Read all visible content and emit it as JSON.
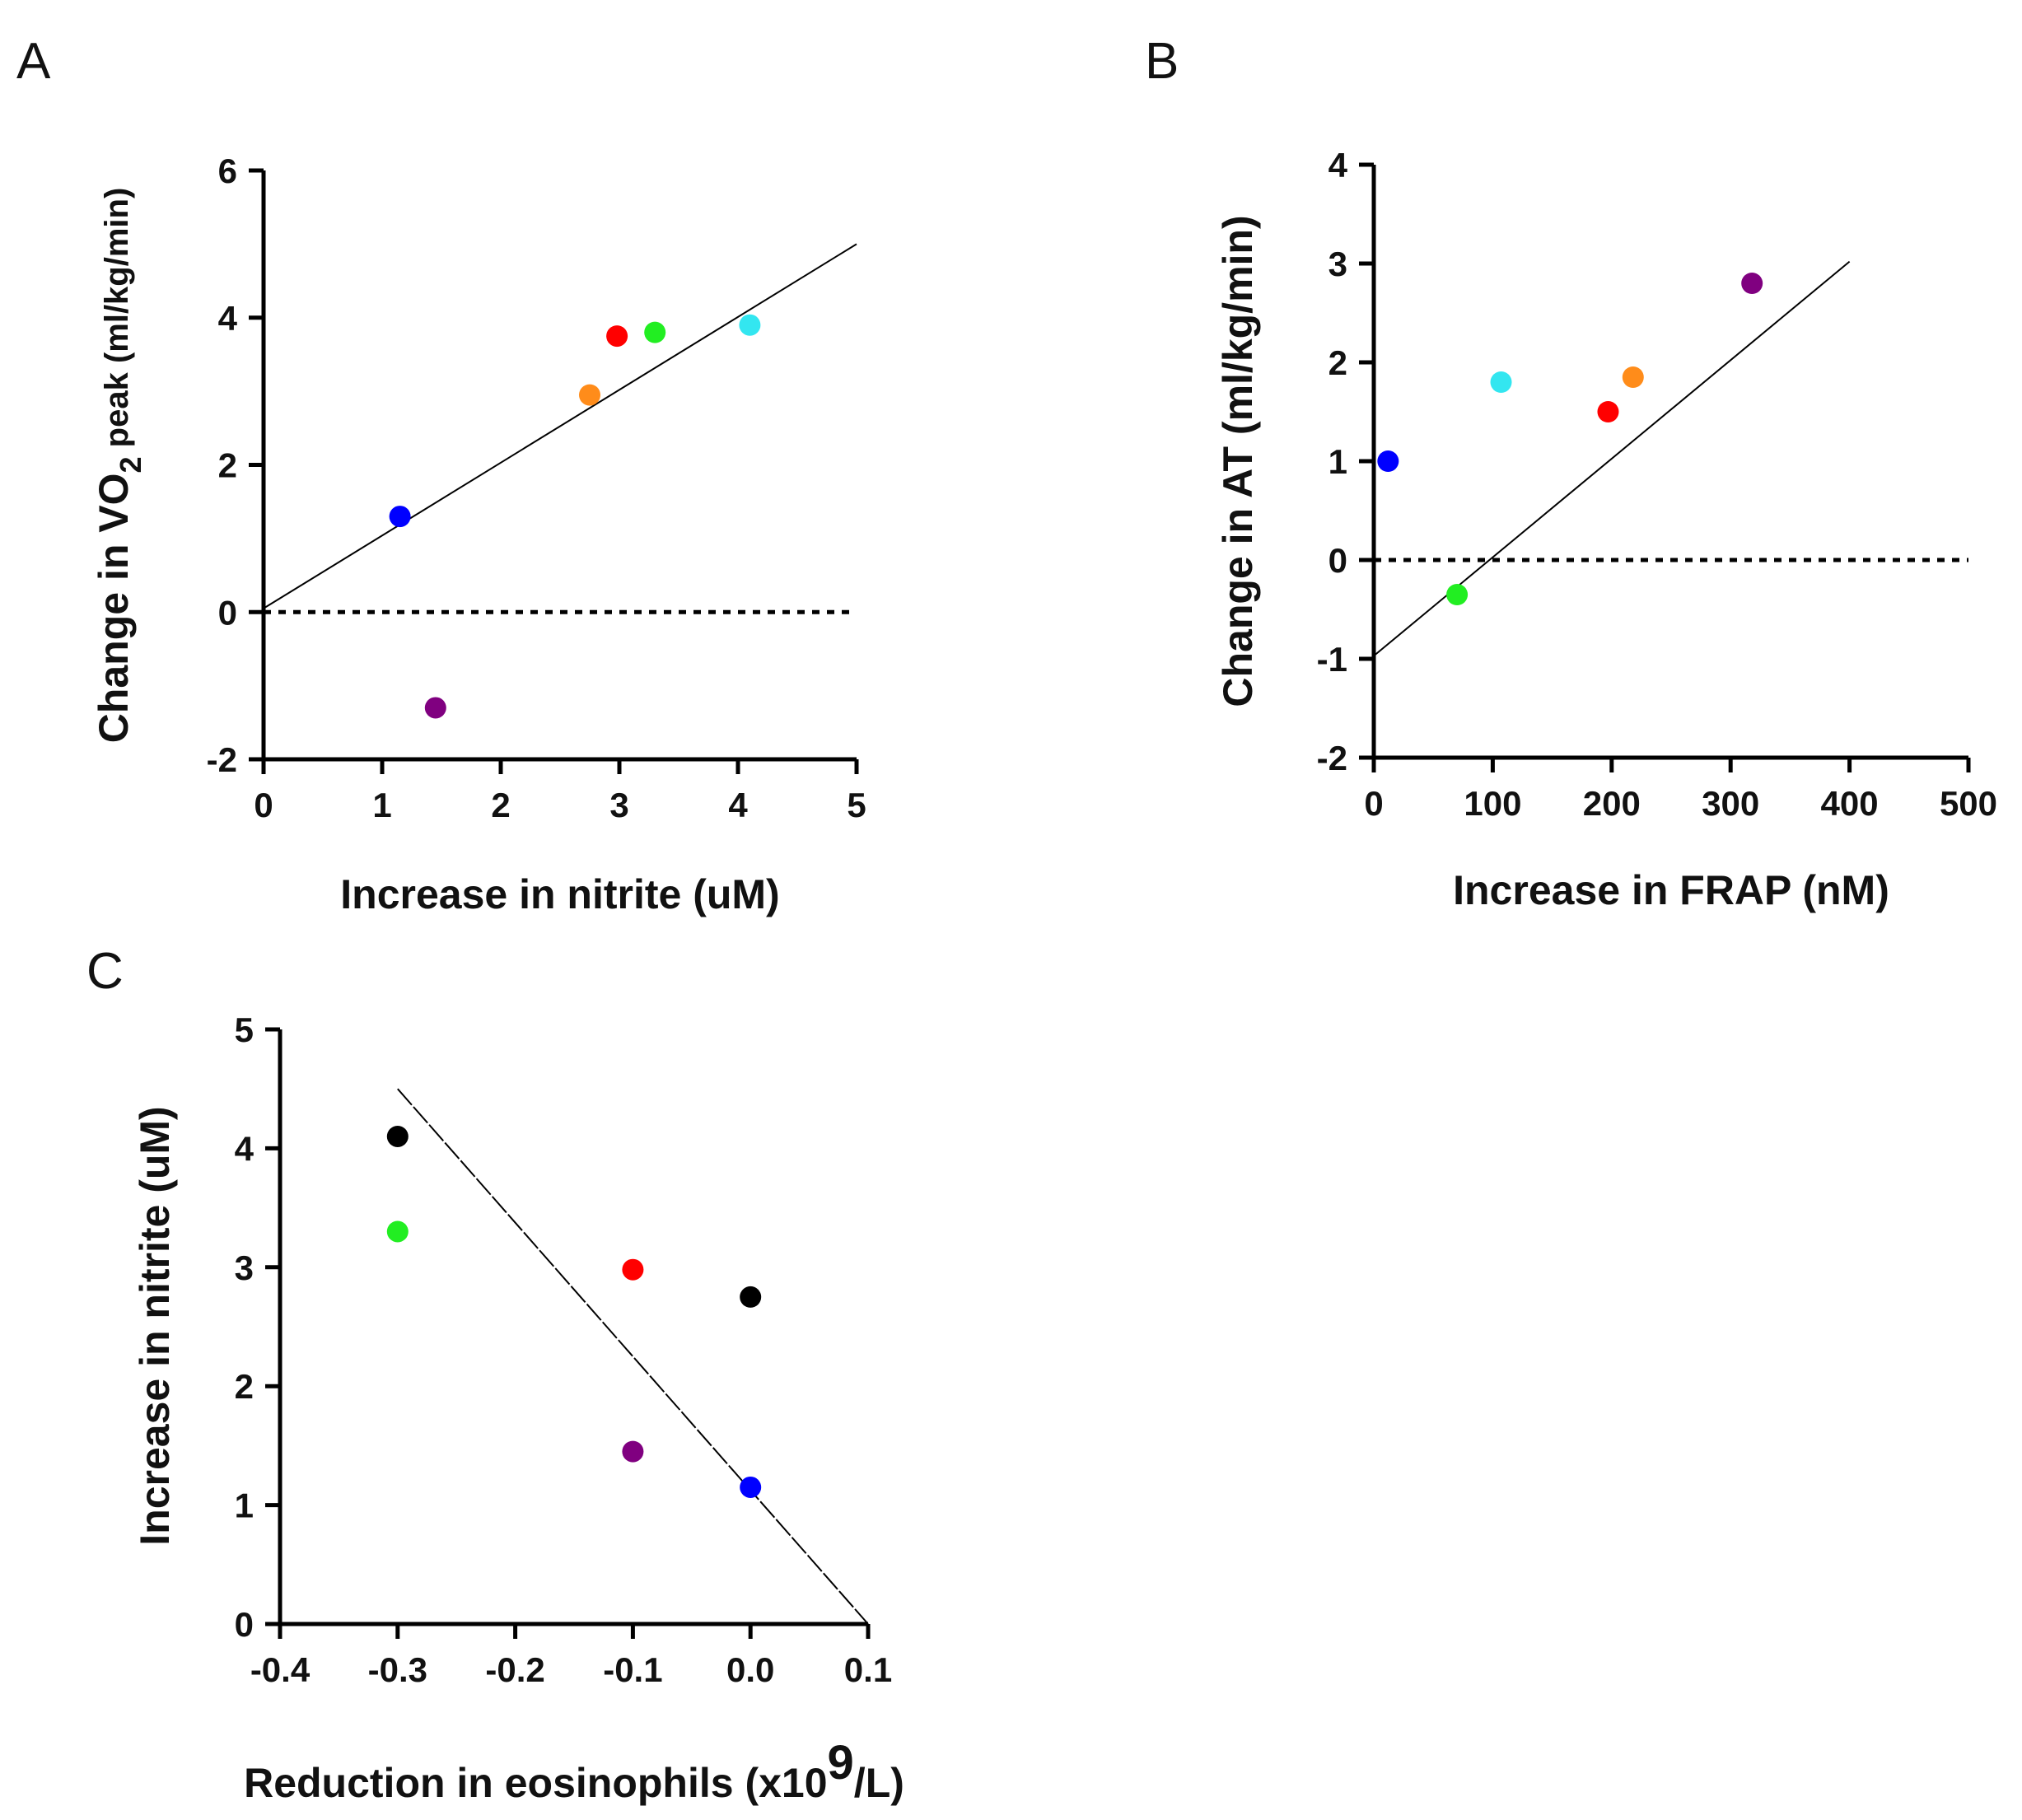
{
  "chart_data": [
    {
      "panel": "A",
      "type": "scatter",
      "xlabel": "Increase in nitrite (uM)",
      "ylabel_parts": [
        "Change in VO",
        "2",
        " peak (ml/kg/min)"
      ],
      "xlim": [
        0,
        5
      ],
      "ylim": [
        -2,
        6
      ],
      "xticks": [
        0,
        1,
        2,
        3,
        4,
        5
      ],
      "xtick_labels": [
        "0",
        "1",
        "2",
        "3",
        "4",
        "5"
      ],
      "yticks": [
        -2,
        0,
        2,
        4,
        6
      ],
      "ytick_labels": [
        "-2",
        "0",
        "2",
        "4",
        "6"
      ],
      "zero_line": true,
      "fit_line": [
        [
          0,
          0.05
        ],
        [
          5,
          5.0
        ]
      ],
      "points": [
        {
          "x": 1.15,
          "y": 1.3,
          "color": "#0000ff"
        },
        {
          "x": 1.45,
          "y": -1.3,
          "color": "#800080"
        },
        {
          "x": 2.75,
          "y": 2.95,
          "color": "#ff8c1a"
        },
        {
          "x": 2.98,
          "y": 3.75,
          "color": "#ff0000"
        },
        {
          "x": 3.3,
          "y": 3.8,
          "color": "#22ee22"
        },
        {
          "x": 4.1,
          "y": 3.9,
          "color": "#33e6f0"
        }
      ]
    },
    {
      "panel": "B",
      "type": "scatter",
      "xlabel": "Increase in FRAP (nM)",
      "ylabel_parts": [
        "Change in AT (ml/kg/min)"
      ],
      "xlim": [
        0,
        500
      ],
      "ylim": [
        -2,
        4
      ],
      "xticks": [
        0,
        100,
        200,
        300,
        400,
        500
      ],
      "xtick_labels": [
        "0",
        "100",
        "200",
        "300",
        "400",
        "500"
      ],
      "yticks": [
        -2,
        -1,
        0,
        1,
        2,
        3,
        4
      ],
      "ytick_labels": [
        "-2",
        "-1",
        "0",
        "1",
        "2",
        "3",
        "4"
      ],
      "zero_line": true,
      "fit_line": [
        [
          0,
          -0.97
        ],
        [
          400,
          3.02
        ]
      ],
      "points": [
        {
          "x": 12,
          "y": 1.0,
          "color": "#0000ff"
        },
        {
          "x": 70,
          "y": -0.35,
          "color": "#22ee22"
        },
        {
          "x": 107,
          "y": 1.8,
          "color": "#33e6f0"
        },
        {
          "x": 197,
          "y": 1.5,
          "color": "#ff0000"
        },
        {
          "x": 218,
          "y": 1.85,
          "color": "#ff8c1a"
        },
        {
          "x": 318,
          "y": 2.8,
          "color": "#800080"
        }
      ]
    },
    {
      "panel": "C",
      "type": "scatter",
      "xlabel_parts": [
        "Reduction in eosinophils (x10",
        "9",
        "/L)"
      ],
      "ylabel_parts": [
        "Increase in nitrite (uM)"
      ],
      "xlim": [
        -0.4,
        0.1
      ],
      "ylim": [
        0,
        5
      ],
      "xticks": [
        -0.4,
        -0.3,
        -0.2,
        -0.1,
        0.0,
        0.1
      ],
      "xtick_labels": [
        "-0.4",
        "-0.3",
        "-0.2",
        "-0.1",
        "0.0",
        "0.1"
      ],
      "yticks": [
        0,
        1,
        2,
        3,
        4,
        5
      ],
      "ytick_labels": [
        "0",
        "1",
        "2",
        "3",
        "4",
        "5"
      ],
      "zero_line": false,
      "fit_line": [
        [
          -0.3,
          4.5
        ],
        [
          0.1,
          0.0
        ]
      ],
      "fit_dashed": true,
      "points": [
        {
          "x": -0.3,
          "y": 4.1,
          "color": "#000000"
        },
        {
          "x": -0.3,
          "y": 3.3,
          "color": "#22ee22"
        },
        {
          "x": -0.1,
          "y": 2.98,
          "color": "#ff0000"
        },
        {
          "x": 0.0,
          "y": 2.75,
          "color": "#000000"
        },
        {
          "x": -0.1,
          "y": 1.45,
          "color": "#800080"
        },
        {
          "x": 0.0,
          "y": 1.15,
          "color": "#0000ff"
        }
      ]
    }
  ]
}
